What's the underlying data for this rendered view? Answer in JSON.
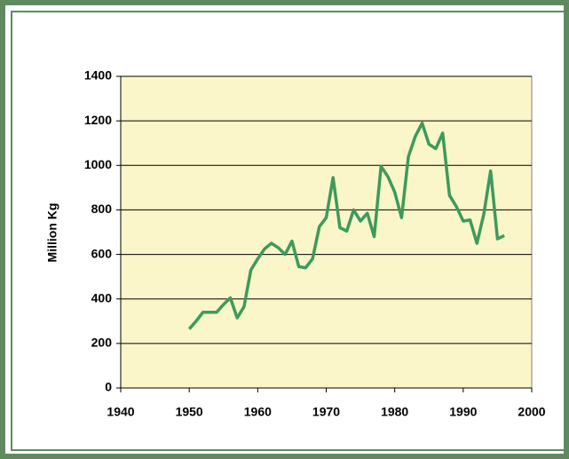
{
  "chart_data": {
    "type": "line",
    "y_label": "Million Kg",
    "x": [
      1950,
      1951,
      1952,
      1953,
      1954,
      1955,
      1956,
      1957,
      1958,
      1959,
      1960,
      1961,
      1962,
      1963,
      1964,
      1965,
      1966,
      1967,
      1968,
      1969,
      1970,
      1971,
      1972,
      1973,
      1974,
      1975,
      1976,
      1977,
      1978,
      1979,
      1980,
      1981,
      1982,
      1983,
      1984,
      1985,
      1986,
      1987,
      1988,
      1989,
      1990,
      1991,
      1992,
      1993,
      1994,
      1995,
      1996
    ],
    "series": [
      {
        "name": "Million Kg",
        "color": "#3d9a5c",
        "values": [
          265,
          300,
          340,
          340,
          340,
          375,
          405,
          315,
          365,
          530,
          580,
          625,
          650,
          630,
          600,
          660,
          545,
          540,
          580,
          725,
          765,
          945,
          720,
          705,
          800,
          750,
          785,
          680,
          995,
          950,
          880,
          765,
          1040,
          1130,
          1190,
          1095,
          1075,
          1145,
          865,
          815,
          750,
          755,
          650,
          780,
          975,
          670,
          685
        ]
      }
    ],
    "xlim": [
      1940,
      2000
    ],
    "xticks": [
      1940,
      1950,
      1960,
      1970,
      1980,
      1990,
      2000
    ],
    "ylim": [
      0,
      1400
    ],
    "yticks": [
      0,
      200,
      400,
      600,
      800,
      1000,
      1200,
      1400
    ],
    "grid": true,
    "plot_background": "#fbf6c9"
  }
}
